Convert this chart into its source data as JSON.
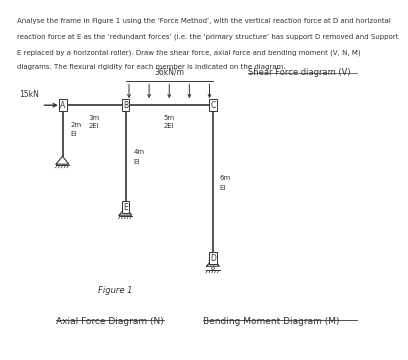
{
  "title_lines": [
    "Analyse the frame in Figure 1 using the ‘Force Method’, with the vertical reaction force at D and horizontal",
    "reaction force at E as the ‘redundant forces’ (i.e. the ‘primary structure’ has support D removed and Support",
    "E replaced by a horizontal roller). Draw the shear force, axial force and bending moment (V, N, M)",
    "diagrams. The flexural rigidity for each member is indicated on the diagram."
  ],
  "shear_label": "Shear Force diagram (V)",
  "axial_label": "Axial Force Diagram (N)",
  "bending_label": "Bending Moment Diagram (M)",
  "figure_label": "Figure 1",
  "load_label": "36kN/m",
  "force_label": "15kN",
  "frame_color": "#333333",
  "text_color": "#333333",
  "bg_color": "#ffffff",
  "xL": 0.15,
  "xM": 0.33,
  "xR": 0.58,
  "yTop": 0.72,
  "yB": 0.57
}
